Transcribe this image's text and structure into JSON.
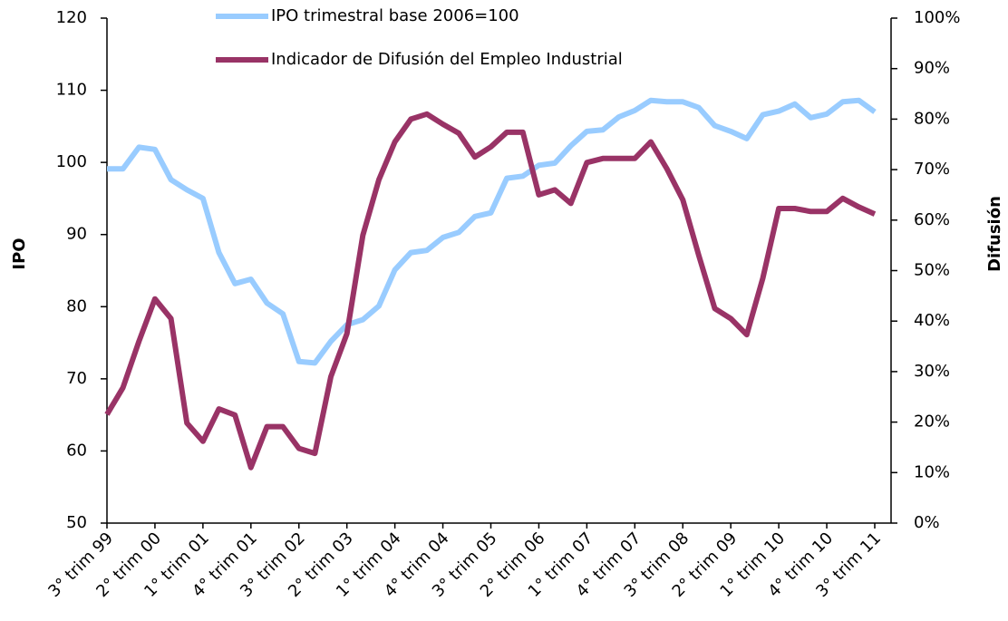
{
  "chart_data": {
    "type": "line",
    "categories": [
      "3° trim 99",
      null,
      null,
      "2° trim 00",
      null,
      null,
      "1° trim 01",
      null,
      null,
      "4° trim 01",
      null,
      null,
      "3° trim 02",
      null,
      null,
      "2° trim 03",
      null,
      null,
      "1° trim 04",
      null,
      null,
      "4° trim 04",
      null,
      null,
      "3° trim 05",
      null,
      null,
      "2° trim 06",
      null,
      null,
      "1° trim 07",
      null,
      null,
      "4° trim 07",
      null,
      null,
      "3° trim 08",
      null,
      null,
      "2° trim 09",
      null,
      null,
      "1° trim 10",
      null,
      null,
      "4° trim 10",
      null,
      null,
      "3° trim 11"
    ],
    "series": [
      {
        "name": "IPO trimestral base 2006=100",
        "color": "#99ccff",
        "axis": "y",
        "values": [
          99.1,
          99.1,
          102.1,
          101.8,
          97.6,
          96.2,
          95.0,
          87.5,
          83.2,
          83.8,
          80.5,
          79.0,
          72.4,
          72.2,
          75.2,
          77.5,
          78.2,
          80.1,
          85.1,
          87.5,
          87.8,
          89.6,
          90.3,
          92.5,
          93.0,
          97.8,
          98.1,
          99.6,
          99.9,
          102.3,
          104.3,
          104.5,
          106.3,
          107.2,
          108.6,
          108.4,
          108.4,
          107.6,
          105.1,
          104.3,
          103.3,
          106.6,
          107.1,
          108.1,
          106.2,
          106.7,
          108.4,
          108.6,
          107.0
        ]
      },
      {
        "name": "Indicador de Difusión del Empleo Industrial",
        "color": "#993366",
        "axis": "y2",
        "values": [
          21.5,
          26.8,
          36,
          44.4,
          40.5,
          19.8,
          16.2,
          22.6,
          21.4,
          11,
          19.1,
          19.1,
          14.8,
          13.8,
          29,
          37.5,
          57,
          68,
          75.5,
          80,
          81,
          79,
          77.2,
          72.5,
          74.5,
          77.4,
          77.4,
          65,
          66,
          63.3,
          71.4,
          72.2,
          72.2,
          72.2,
          75.5,
          70.2,
          64,
          53,
          42.5,
          40.5,
          37.3,
          48.5,
          62.3,
          62.3,
          61.7,
          61.7,
          64.3,
          62.6,
          61.2
        ]
      }
    ],
    "y_label": "IPO",
    "y2_label": "Difusión",
    "ylim": [
      50,
      120
    ],
    "yticks": [
      50,
      60,
      70,
      80,
      90,
      100,
      110,
      120
    ],
    "y2lim": [
      0,
      100
    ],
    "y2ticks": [
      {
        "value": 0,
        "label": "0%"
      },
      {
        "value": 10,
        "label": "10%"
      },
      {
        "value": 20,
        "label": "20%"
      },
      {
        "value": 30,
        "label": "30%"
      },
      {
        "value": 40,
        "label": "40%"
      },
      {
        "value": 50,
        "label": "50%"
      },
      {
        "value": 60,
        "label": "60%"
      },
      {
        "value": 70,
        "label": "70%"
      },
      {
        "value": 80,
        "label": "80%"
      },
      {
        "value": 90,
        "label": "90%"
      },
      {
        "value": 100,
        "label": "100%"
      }
    ],
    "legend": "top"
  }
}
